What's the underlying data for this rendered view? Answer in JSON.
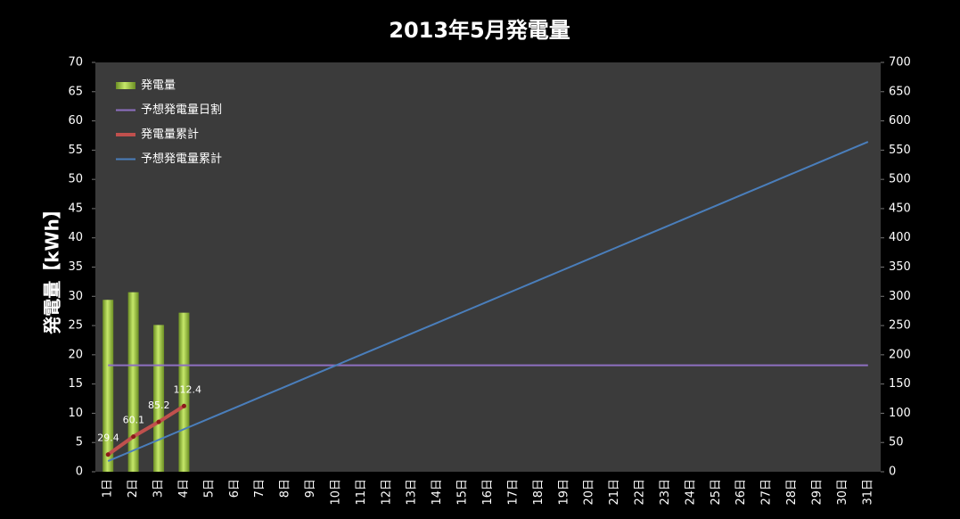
{
  "chart_data": {
    "type": "bar",
    "title": "2013年5月発電量",
    "y_label": "発電量【kWh】",
    "categories": [
      "1日",
      "2日",
      "3日",
      "4日",
      "5日",
      "6日",
      "7日",
      "8日",
      "9日",
      "10日",
      "11日",
      "12日",
      "13日",
      "14日",
      "15日",
      "16日",
      "17日",
      "18日",
      "19日",
      "20日",
      "21日",
      "22日",
      "23日",
      "24日",
      "25日",
      "26日",
      "27日",
      "28日",
      "29日",
      "30日",
      "31日"
    ],
    "series": [
      {
        "name": "発電量",
        "type": "bar",
        "color": "#9acd32",
        "values": [
          29.4,
          30.7,
          25.1,
          27.2,
          null,
          null,
          null,
          null,
          null,
          null,
          null,
          null,
          null,
          null,
          null,
          null,
          null,
          null,
          null,
          null,
          null,
          null,
          null,
          null,
          null,
          null,
          null,
          null,
          null,
          null,
          null
        ]
      },
      {
        "name": "予想発電量日割",
        "type": "line",
        "color": "#8e6fc1",
        "values": [
          18.2,
          18.2,
          18.2,
          18.2,
          18.2,
          18.2,
          18.2,
          18.2,
          18.2,
          18.2,
          18.2,
          18.2,
          18.2,
          18.2,
          18.2,
          18.2,
          18.2,
          18.2,
          18.2,
          18.2,
          18.2,
          18.2,
          18.2,
          18.2,
          18.2,
          18.2,
          18.2,
          18.2,
          18.2,
          18.2,
          18.2
        ]
      },
      {
        "name": "発電量累計",
        "type": "line",
        "axis": "y2",
        "color": "#c0504d",
        "markers": true,
        "data_labels": true,
        "values": [
          29.4,
          60.1,
          85.2,
          112.4,
          null,
          null,
          null,
          null,
          null,
          null,
          null,
          null,
          null,
          null,
          null,
          null,
          null,
          null,
          null,
          null,
          null,
          null,
          null,
          null,
          null,
          null,
          null,
          null,
          null,
          null,
          null
        ]
      },
      {
        "name": "予想発電量累計",
        "type": "line",
        "axis": "y2",
        "color": "#4a7ebb",
        "values": [
          18.2,
          36.4,
          54.6,
          72.8,
          91,
          109.2,
          127.4,
          145.6,
          163.8,
          182,
          200.2,
          218.4,
          236.6,
          254.8,
          273,
          291.2,
          309.4,
          327.6,
          345.8,
          364,
          382.2,
          400.4,
          418.6,
          436.8,
          455,
          473.2,
          491.4,
          509.6,
          527.8,
          546,
          564.2
        ]
      }
    ],
    "ylim": [
      0,
      70
    ],
    "yticks": [
      0,
      5,
      10,
      15,
      20,
      25,
      30,
      35,
      40,
      45,
      50,
      55,
      60,
      65,
      70
    ],
    "y2lim": [
      0,
      700
    ],
    "y2ticks": [
      0,
      50,
      100,
      150,
      200,
      250,
      300,
      350,
      400,
      450,
      500,
      550,
      600,
      650,
      700
    ],
    "grid": false,
    "legend": "upper left"
  }
}
